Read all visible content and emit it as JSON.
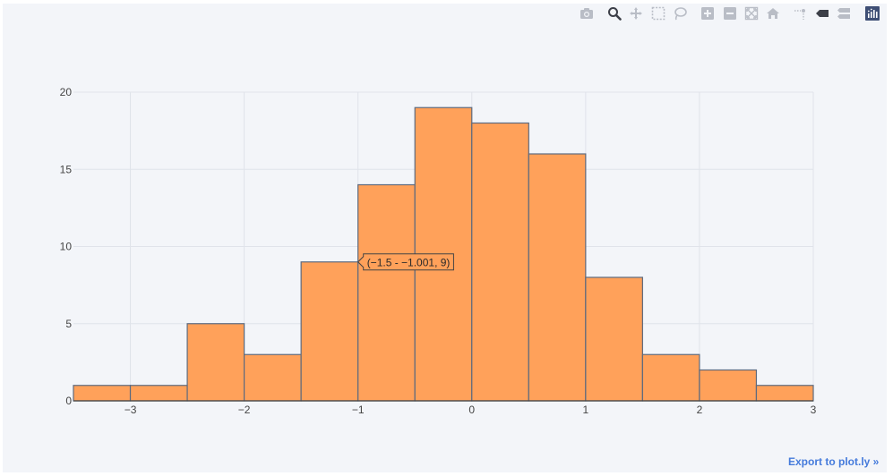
{
  "modebar": {
    "buttons": [
      {
        "name": "camera-icon",
        "title": "Download plot as a png"
      },
      {
        "name": "zoom-icon",
        "title": "Zoom",
        "active": true
      },
      {
        "name": "pan-icon",
        "title": "Pan"
      },
      {
        "name": "box-select-icon",
        "title": "Box Select"
      },
      {
        "name": "lasso-select-icon",
        "title": "Lasso Select"
      },
      {
        "name": "zoom-in-icon",
        "title": "Zoom in"
      },
      {
        "name": "zoom-out-icon",
        "title": "Zoom out"
      },
      {
        "name": "autoscale-icon",
        "title": "Autoscale"
      },
      {
        "name": "reset-axes-icon",
        "title": "Reset axes"
      },
      {
        "name": "spike-lines-icon",
        "title": "Toggle Spike Lines"
      },
      {
        "name": "hover-closest-icon",
        "title": "Show closest data on hover"
      },
      {
        "name": "hover-compare-icon",
        "title": "Compare data on hover"
      },
      {
        "name": "plotly-logo-icon",
        "title": "Produced with Plotly"
      }
    ]
  },
  "chart_data": {
    "type": "bar",
    "subtype": "histogram",
    "bin_edges": [
      -3.5,
      -3,
      -2.5,
      -2,
      -1.5,
      -1,
      -0.5,
      0,
      0.5,
      1,
      1.5,
      2,
      2.5,
      3
    ],
    "values": [
      1,
      1,
      5,
      3,
      9,
      14,
      19,
      18,
      16,
      8,
      3,
      2,
      1
    ],
    "xlim": [
      -3.5,
      3
    ],
    "ylim": [
      0,
      20
    ],
    "x_ticks": [
      -3,
      -2,
      -1,
      0,
      1,
      2,
      3
    ],
    "x_tick_labels": [
      "−3",
      "−2",
      "−1",
      "0",
      "1",
      "2",
      "3"
    ],
    "y_ticks": [
      0,
      5,
      10,
      15,
      20
    ],
    "y_tick_labels": [
      "0",
      "5",
      "10",
      "15",
      "20"
    ],
    "grid": true,
    "colors": {
      "bar_fill": "#ffa15a",
      "bar_edge": "#5d6a7e",
      "grid": "#e0e3ea",
      "tick_text": "#444444",
      "background": "#f3f5f9"
    },
    "hover": {
      "text": "(−1.5 - −1.001, 9)",
      "bin_index": 4
    }
  },
  "footer": {
    "export_label": "Export to plot.ly »"
  }
}
